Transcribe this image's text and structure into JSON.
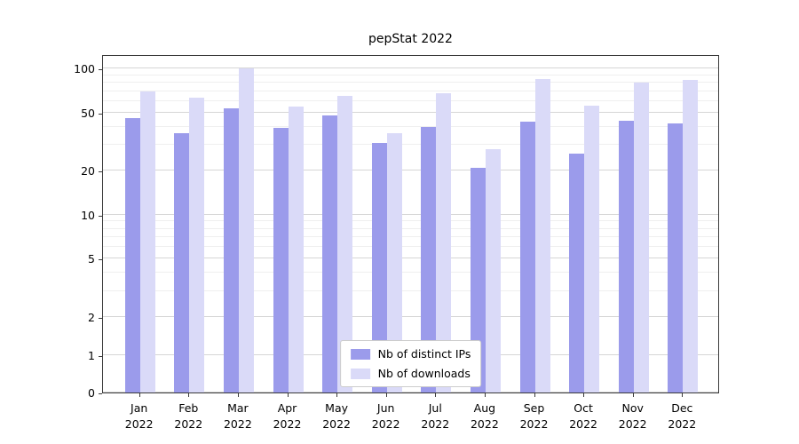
{
  "title": "pepStat 2022",
  "chart_data": {
    "type": "bar",
    "title": "pepStat 2022",
    "categories": [
      "Jan 2022",
      "Feb 2022",
      "Mar 2022",
      "Apr 2022",
      "May 2022",
      "Jun 2022",
      "Jul 2022",
      "Aug 2022",
      "Sep 2022",
      "Oct 2022",
      "Nov 2022",
      "Dec 2022"
    ],
    "series": [
      {
        "key": "distinct-ips",
        "name": "Nb of distinct IPs",
        "color": "#9b9beb",
        "values": [
          46,
          36,
          53,
          39,
          48,
          31,
          40,
          21,
          43,
          26,
          44,
          42
        ]
      },
      {
        "key": "downloads",
        "name": "Nb of downloads",
        "color": "#dadaf8",
        "values": [
          70,
          63,
          100,
          55,
          65,
          36,
          68,
          28,
          85,
          56,
          80,
          84
        ]
      }
    ],
    "yscale": "symlog",
    "yticks": [
      0,
      1,
      2,
      5,
      10,
      20,
      50,
      100
    ],
    "y_minor_ticks": [
      3,
      4,
      6,
      7,
      8,
      9,
      30,
      40,
      60,
      70,
      80,
      90
    ],
    "ylim": [
      0,
      125
    ],
    "xlabel": "",
    "ylabel": "",
    "grid": true,
    "legend_position": "lower center"
  }
}
